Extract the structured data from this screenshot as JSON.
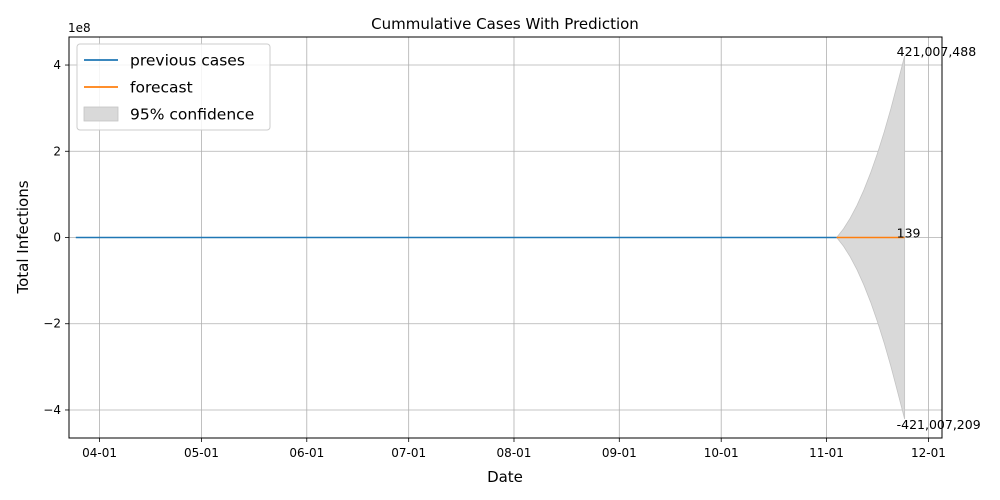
{
  "chart_data": {
    "type": "line",
    "title": "Cummulative Cases With Prediction",
    "xlabel": "Date",
    "ylabel": "Total Infections",
    "y_exponent_label": "1e8",
    "y_scale_factor": 100000000,
    "grid": true,
    "legend_position": "top-left",
    "x_range": [
      "2020-03-23",
      "2020-12-05"
    ],
    "y_range": [
      -465000000,
      465000000
    ],
    "x_ticks": [
      {
        "date": "2020-04-01",
        "label": "04-01"
      },
      {
        "date": "2020-05-01",
        "label": "05-01"
      },
      {
        "date": "2020-06-01",
        "label": "06-01"
      },
      {
        "date": "2020-07-01",
        "label": "07-01"
      },
      {
        "date": "2020-08-01",
        "label": "08-01"
      },
      {
        "date": "2020-09-01",
        "label": "09-01"
      },
      {
        "date": "2020-10-01",
        "label": "10-01"
      },
      {
        "date": "2020-11-01",
        "label": "11-01"
      },
      {
        "date": "2020-12-01",
        "label": "12-01"
      }
    ],
    "y_ticks": [
      {
        "value": -400000000,
        "label": "−4"
      },
      {
        "value": -200000000,
        "label": "−2"
      },
      {
        "value": 0,
        "label": "0"
      },
      {
        "value": 200000000,
        "label": "2"
      },
      {
        "value": 400000000,
        "label": "4"
      }
    ],
    "series": [
      {
        "name": "previous cases",
        "color": "#1f77b4",
        "x": [
          "2020-03-25",
          "2020-11-04"
        ],
        "y": [
          0,
          100
        ]
      },
      {
        "name": "forecast",
        "color": "#ff7f0e",
        "x": [
          "2020-11-04",
          "2020-11-24"
        ],
        "y": [
          100,
          139
        ]
      },
      {
        "name": "95% confidence",
        "type": "area",
        "color": "#d9d9d9",
        "x": [
          "2020-11-04",
          "2020-11-06",
          "2020-11-08",
          "2020-11-10",
          "2020-11-12",
          "2020-11-14",
          "2020-11-16",
          "2020-11-18",
          "2020-11-20",
          "2020-11-22",
          "2020-11-24"
        ],
        "upper": [
          0,
          20000000,
          45000000,
          75000000,
          110000000,
          150000000,
          195000000,
          245000000,
          300000000,
          360000000,
          421007488
        ],
        "lower": [
          0,
          -20000000,
          -45000000,
          -75000000,
          -110000000,
          -150000000,
          -195000000,
          -245000000,
          -300000000,
          -360000000,
          -421007209
        ]
      }
    ],
    "annotations": [
      {
        "text": "421,007,488",
        "x": "2020-11-24",
        "y": 421007488
      },
      {
        "text": "139",
        "x": "2020-11-24",
        "y": 139
      },
      {
        "text": "-421,007,209",
        "x": "2020-11-24",
        "y": -421007209
      }
    ]
  }
}
